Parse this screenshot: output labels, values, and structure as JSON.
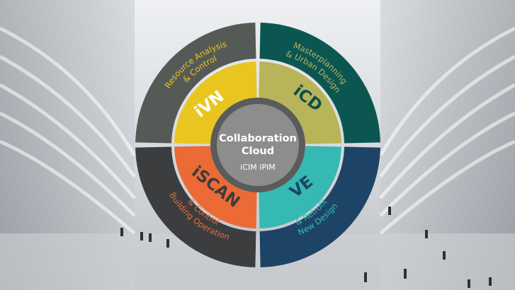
{
  "diagram": {
    "center": {
      "title_line1": "Collaboration",
      "title_line2": "Cloud",
      "subtitle": "iCIM iPIM"
    },
    "quadrants": [
      {
        "code": "iVN",
        "outer_label_line1": "Resource Analysis",
        "outer_label_line2": "& Control",
        "inner_color": "#e9c61f",
        "outer_color": "#565a57",
        "code_color": "#ffffff",
        "label_color": "#e9c61f"
      },
      {
        "code": "iCD",
        "outer_label_line1": "Masterplanning",
        "outer_label_line2": "& Urban Design",
        "inner_color": "#b8b459",
        "outer_color": "#0c5652",
        "code_color": "#0d4f4a",
        "label_color": "#b8b459"
      },
      {
        "code": "VE",
        "outer_label_line1": "New Design",
        "outer_label_line2": "& Retrofit",
        "inner_color": "#35b9b2",
        "outer_color": "#1d4466",
        "code_color": "#1d4466",
        "label_color": "#35b9b2"
      },
      {
        "code": "iSCAN",
        "outer_label_line1": "Building Operation",
        "outer_label_line2": "& Control",
        "inner_color": "#ec6a35",
        "outer_color": "#3b3d3f",
        "code_color": "#3b3d3f",
        "label_color": "#ec6a35"
      }
    ],
    "center_fill": "#8d8e8c",
    "center_ring": "#5a5c5b"
  },
  "background": {
    "description_colors": [
      "#eef0f2",
      "#c9ccd0",
      "#8f949a"
    ]
  }
}
